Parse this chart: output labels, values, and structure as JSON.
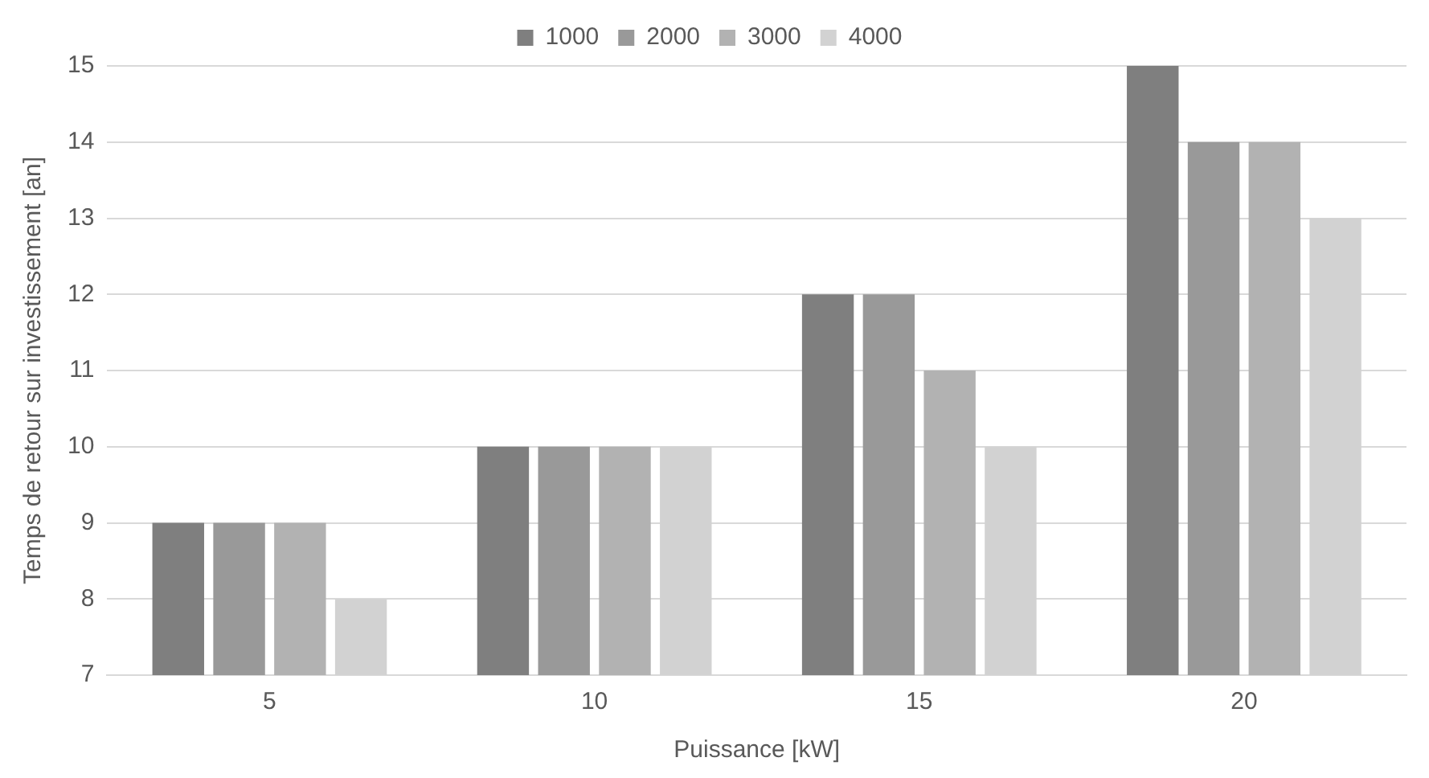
{
  "chart_data": {
    "type": "bar",
    "xlabel": "Puissance [kW]",
    "ylabel": "Temps de retour sur investissement [an]",
    "categories": [
      "5",
      "10",
      "15",
      "20"
    ],
    "series": [
      {
        "name": "1000",
        "color": "#7f7f7f",
        "values": [
          9,
          10,
          12,
          15
        ]
      },
      {
        "name": "2000",
        "color": "#999999",
        "values": [
          9,
          10,
          12,
          14
        ]
      },
      {
        "name": "3000",
        "color": "#b2b2b2",
        "values": [
          9,
          10,
          11,
          14
        ]
      },
      {
        "name": "4000",
        "color": "#d2d2d2",
        "values": [
          8,
          10,
          10,
          13
        ]
      }
    ],
    "ylim": [
      7,
      15
    ],
    "yticks": [
      7,
      8,
      9,
      10,
      11,
      12,
      13,
      14,
      15
    ],
    "grid": "y",
    "legend": "top"
  }
}
